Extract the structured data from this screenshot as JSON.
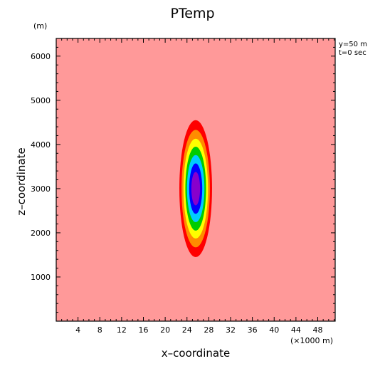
{
  "chart_data": {
    "type": "heatmap",
    "title": "PTemp",
    "xlabel": "x–coordinate",
    "ylabel": "z–coordinate",
    "x_unit": "(×1000 m)",
    "y_unit": "(m)",
    "annotations": [
      "y=50 m",
      "t=0 sec"
    ],
    "xlim": [
      0,
      51.2
    ],
    "ylim": [
      0,
      6400
    ],
    "x_ticks": [
      4,
      8,
      12,
      16,
      20,
      24,
      28,
      32,
      36,
      40,
      44,
      48
    ],
    "x_ticklabels": [
      "4",
      "8",
      "12",
      "16",
      "20",
      "24",
      "28",
      "32",
      "36",
      "40",
      "44",
      "48"
    ],
    "y_ticks": [
      1000,
      2000,
      3000,
      4000,
      5000,
      6000
    ],
    "y_ticklabels": [
      "1000",
      "2000",
      "3000",
      "4000",
      "5000",
      "6000"
    ],
    "background_color": "#ff9999",
    "contours": [
      {
        "center": [
          25.6,
          3000
        ],
        "half_width": 3.0,
        "half_height": 1550,
        "color": "#ff0000"
      },
      {
        "center": [
          25.6,
          3000
        ],
        "half_width": 2.6,
        "half_height": 1330,
        "color": "#ff8c00"
      },
      {
        "center": [
          25.6,
          3000
        ],
        "half_width": 2.25,
        "half_height": 1130,
        "color": "#ffff00"
      },
      {
        "center": [
          25.6,
          3000
        ],
        "half_width": 1.9,
        "half_height": 950,
        "color": "#00cc00"
      },
      {
        "center": [
          25.6,
          3000
        ],
        "half_width": 1.6,
        "half_height": 760,
        "color": "#00ccff"
      },
      {
        "center": [
          25.6,
          3000
        ],
        "half_width": 1.2,
        "half_height": 570,
        "color": "#0000ff"
      },
      {
        "center": [
          25.6,
          3000
        ],
        "half_width": 0.8,
        "half_height": 380,
        "color": "#8800cc"
      }
    ]
  }
}
